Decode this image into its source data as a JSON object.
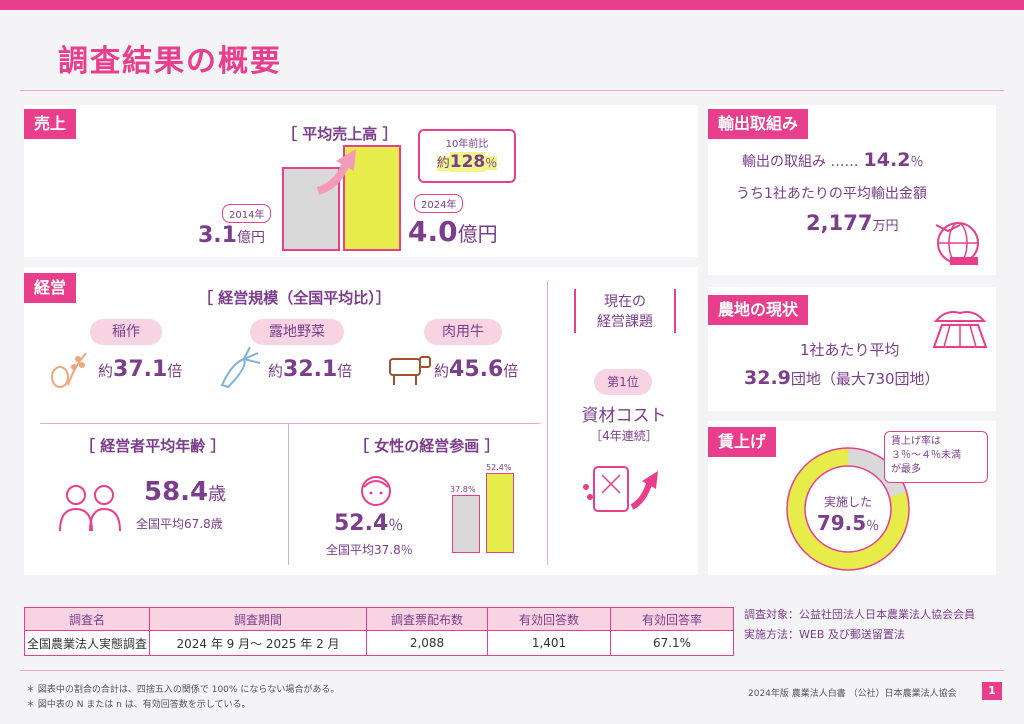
{
  "title": "調査結果の概要",
  "sales": {
    "tag": "売上",
    "heading": "［ 平均売上高 ］",
    "year_2014": "2014年",
    "value_2014": "3.1",
    "unit_2014": "億円",
    "year_2024": "2024年",
    "value_2024": "4.0",
    "unit_2024": "億円",
    "growth_caption": "10年前比",
    "growth_prefix": "約",
    "growth_value": "128",
    "growth_unit": "％"
  },
  "export": {
    "tag": "輸出取組み",
    "line1_label": "輸出の取組み ……",
    "line1_value": "14.2",
    "line1_unit": "％",
    "line2": "うち1社あたりの平均輸出金額",
    "amount": "2,177",
    "amount_unit": "万円"
  },
  "management": {
    "tag": "経営",
    "scale_heading": "［ 経営規模（全国平均比）］",
    "items": [
      {
        "label": "稲作",
        "prefix": "約",
        "value": "37.1",
        "unit": "倍"
      },
      {
        "label": "露地野菜",
        "prefix": "約",
        "value": "32.1",
        "unit": "倍"
      },
      {
        "label": "肉用牛",
        "prefix": "約",
        "value": "45.6",
        "unit": "倍"
      }
    ],
    "issues_heading_1": "現在の",
    "issues_heading_2": "経営課題",
    "rank": "第1位",
    "issue": "資材コスト",
    "issue_note": "［4年連続］",
    "age_heading": "［ 経営者平均年齢 ］",
    "age_value": "58.4",
    "age_unit": "歳",
    "age_national": "全国平均67.8歳",
    "women_heading": "［ 女性の経営参画 ］",
    "women_value": "52.4",
    "women_unit": "％",
    "women_national": "全国平均37.8％",
    "women_bar_national_label": "37.8%",
    "women_bar_company_label": "52.4%",
    "women_bar_national": 37.8,
    "women_bar_company": 52.4
  },
  "farmland": {
    "tag": "農地の現状",
    "line1": "1社あたり平均",
    "value": "32.9",
    "unit": "団地",
    "max_note": "（最大730団地）"
  },
  "wage": {
    "tag": "賃上げ",
    "callout": [
      "賃上げ率は",
      "３％～４％未満",
      "が最多"
    ],
    "center_label": "実施した",
    "value": "79.5",
    "unit": "％",
    "percent": 79.5
  },
  "survey_table": {
    "headers": [
      "調査名",
      "調査期間",
      "調査票配布数",
      "有効回答数",
      "有効回答率"
    ],
    "row": [
      "全国農業法人実態調査",
      "2024 年 9 月～ 2025 年 2 月",
      "2,088",
      "1,401",
      "67.1%"
    ]
  },
  "survey_info": {
    "target": "調査対象：公益社団法人日本農業法人協会会員",
    "method": "実施方法：WEB 及び郵送留置法"
  },
  "notes": [
    "＊ 図表中の割合の合計は、四捨五入の関係で 100% にならない場合がある。",
    "＊ 図中表の N または n は、有効回答数を示している。"
  ],
  "footer": {
    "publication": "2024年版 農業法人白書 （公社）日本農業法人協会",
    "page": "1"
  },
  "colors": {
    "accent": "#e83e8c",
    "purple": "#7b3d8c",
    "yellow": "#e6ec4a",
    "gray": "#d9d9d9"
  }
}
